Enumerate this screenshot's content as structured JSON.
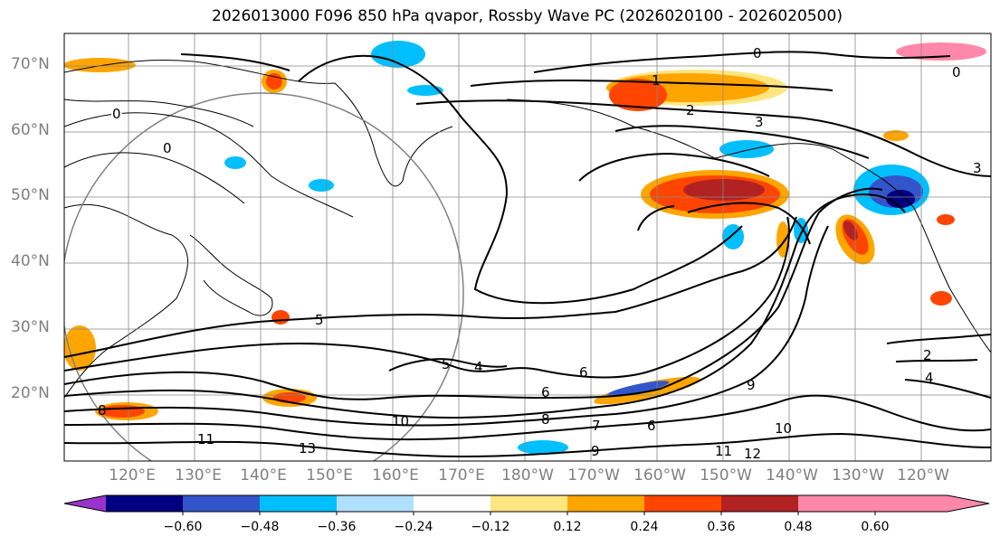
{
  "title": "2026013000 F096 850 hPa qvapor, Rossby Wave PC (2026020100 - 2026020500)",
  "latitude_labels": [
    "70°N",
    "60°N",
    "50°N",
    "40°N",
    "30°N",
    "20°N"
  ],
  "longitude_labels": [
    "120°E",
    "130°E",
    "140°E",
    "150°E",
    "160°E",
    "170°E",
    "180°W",
    "170°W",
    "160°W",
    "150°W",
    "140°W",
    "130°W",
    "120°W"
  ],
  "colorbar": {
    "tick_labels": [
      "−0.60",
      "−0.48",
      "−0.36",
      "−0.24",
      "−0.12",
      "0.12",
      "0.24",
      "0.36",
      "0.48",
      "0.60"
    ],
    "colors": [
      "#9933cc",
      "#000080",
      "#3355cc",
      "#00bfff",
      "#b0e0ff",
      "#ffffff",
      "#ffe680",
      "#ffa500",
      "#ff4500",
      "#b22222",
      "#ff88aa"
    ]
  },
  "contour_labels": [
    "0",
    "0",
    "0",
    "0",
    "1",
    "2",
    "3",
    "3",
    "2",
    "4",
    "5",
    "5",
    "4",
    "6",
    "6",
    "6",
    "7",
    "8",
    "8",
    "9",
    "9",
    "10",
    "10",
    "11",
    "11",
    "12",
    "13"
  ],
  "shading_colors": {
    "positive_low": "#ffa500",
    "positive_mid": "#ff4500",
    "positive_high": "#b22222",
    "negative_low": "#00bfff",
    "negative_mid": "#3355cc",
    "negative_high": "#000080",
    "neutral_light_blue": "#b0e0ff",
    "neutral_yellow": "#ffe680"
  }
}
